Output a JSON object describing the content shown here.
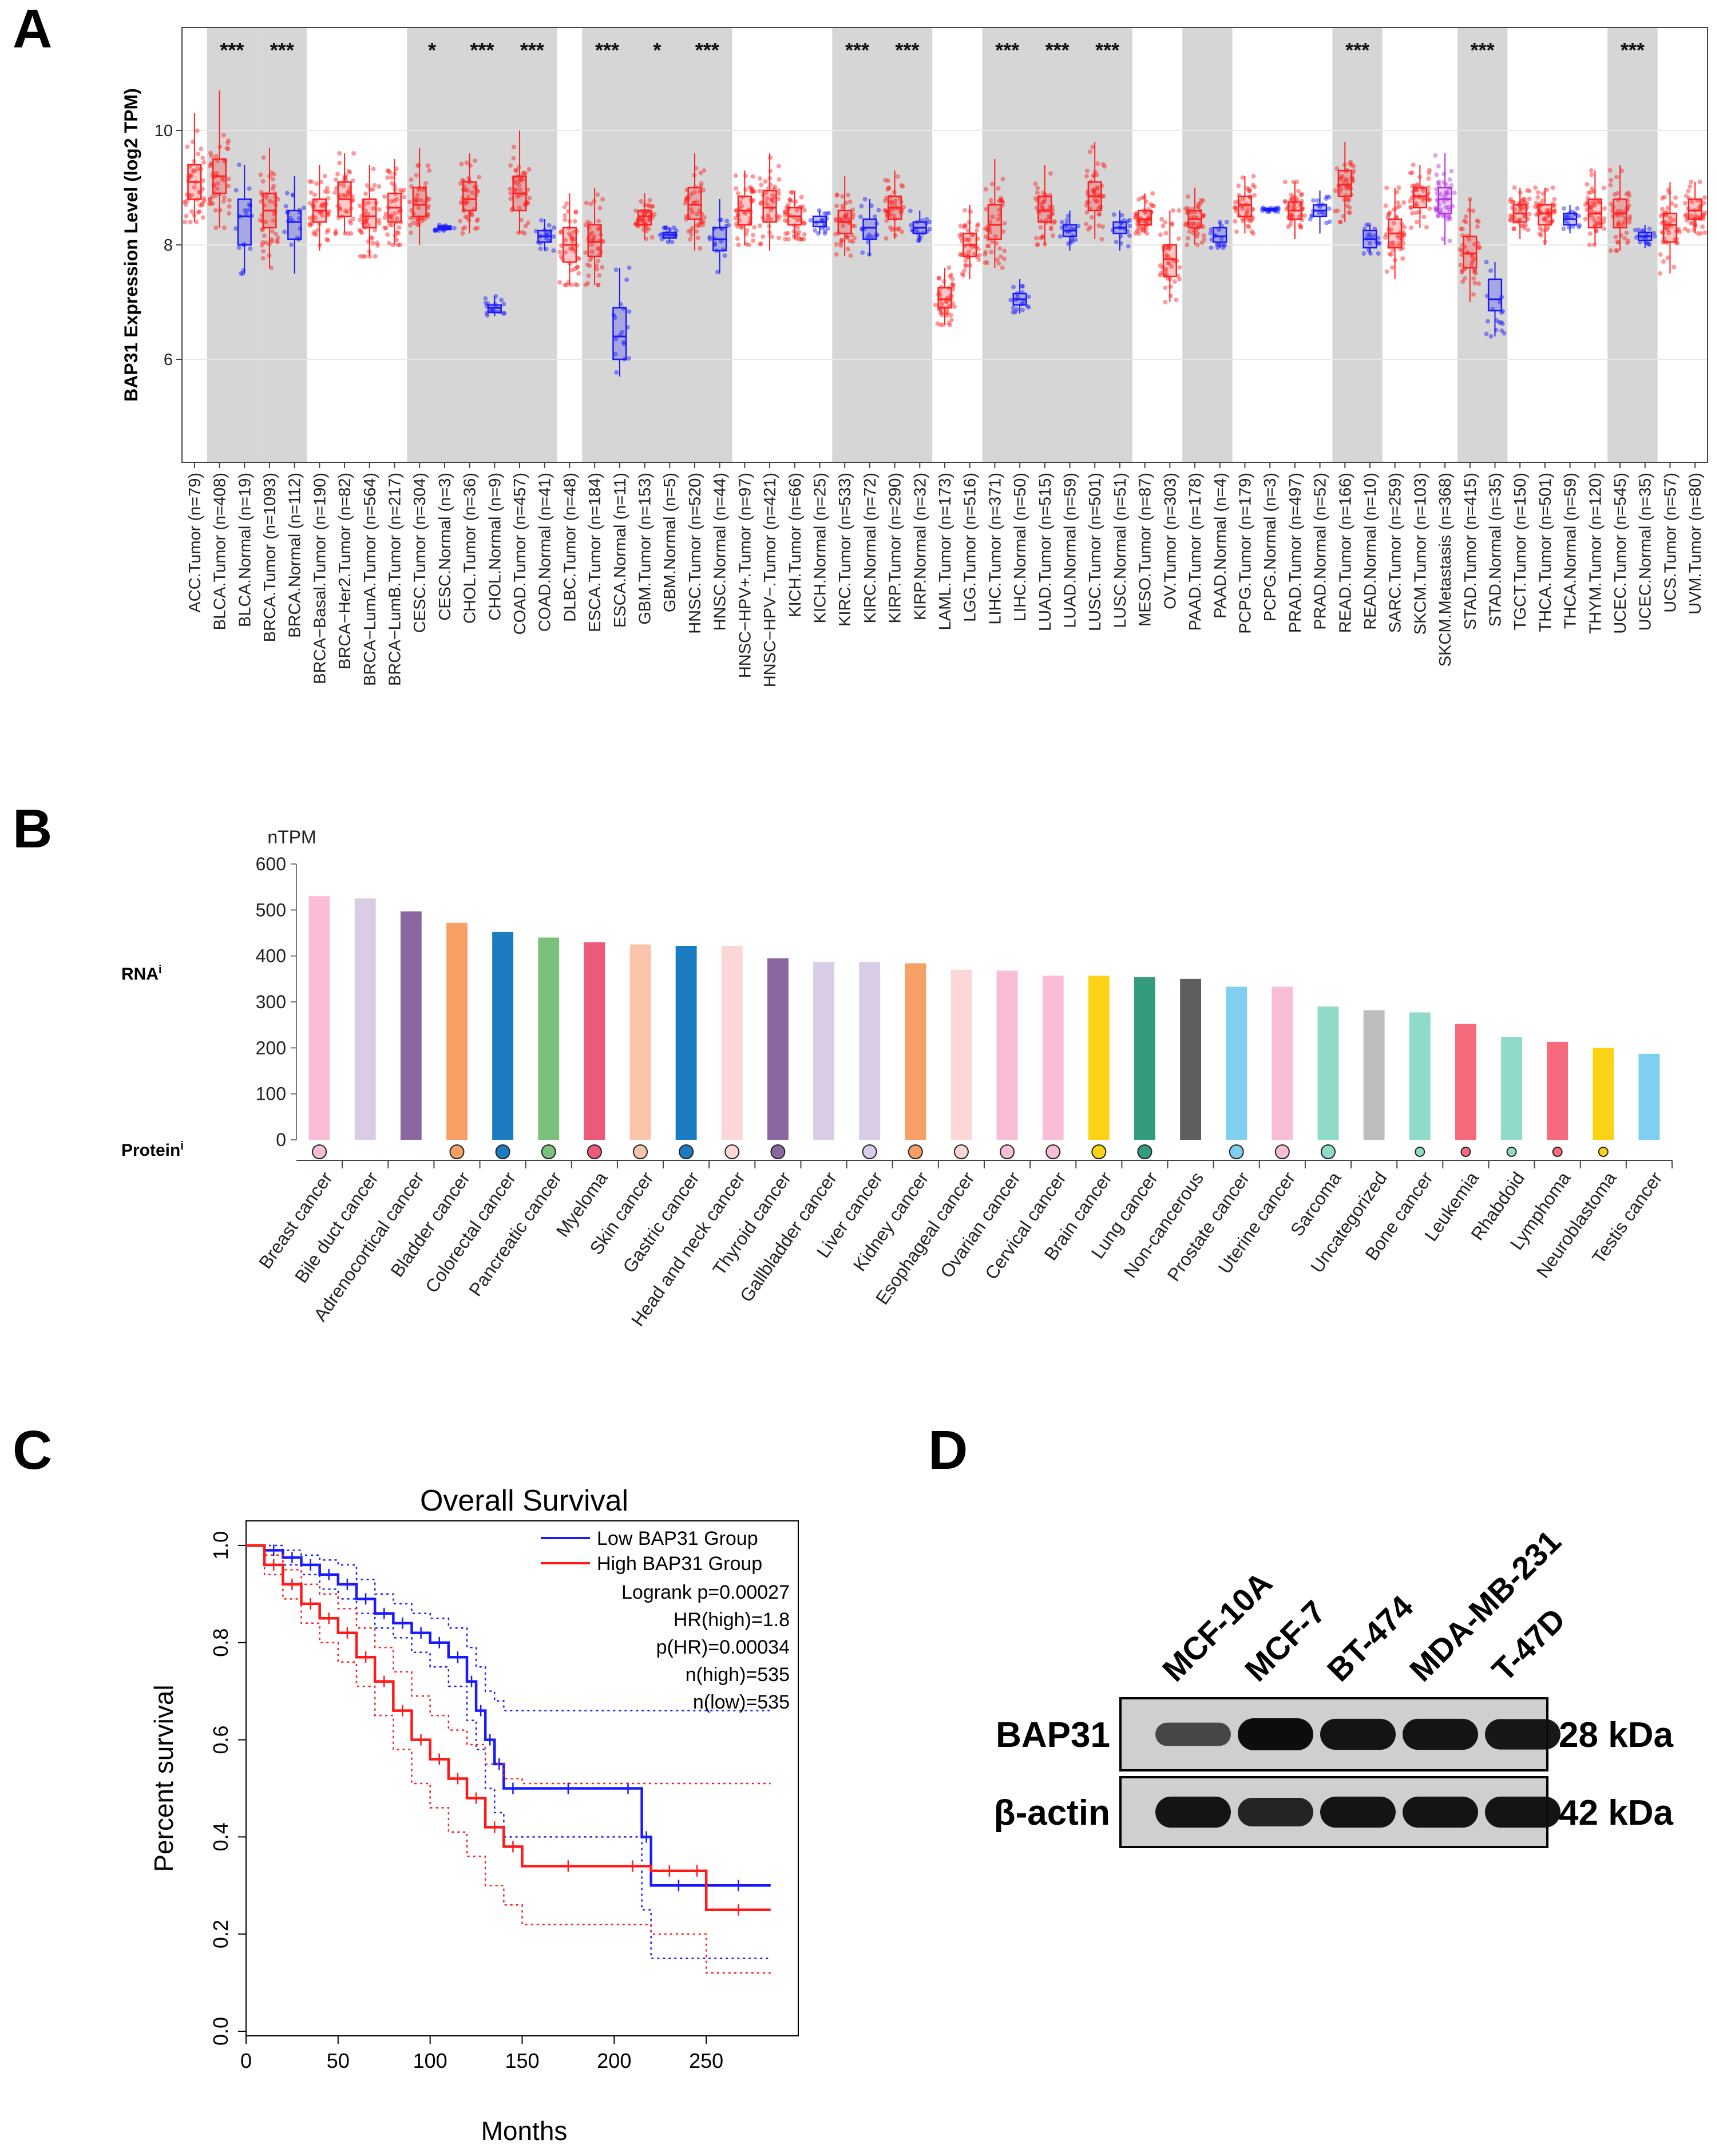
{
  "panels": {
    "a": "A",
    "b": "B",
    "c": "C",
    "d": "D"
  },
  "colors": {
    "tumor": "#ff2020",
    "normal": "#1818ff",
    "metastasis": "#b030e0",
    "shade": "#d6d6d6",
    "low_group": "#1a1aff",
    "high_group": "#ff1a1a"
  },
  "chart_data": [
    {
      "id": "A",
      "type": "box",
      "ylabel": "BAP31 Expression Level (log2 TPM)",
      "yticks": [
        6,
        8,
        10
      ],
      "ylim": [
        4.2,
        11.8
      ],
      "categories": [
        "ACC.Tumor (n=79)",
        "BLCA.Tumor (n=408)",
        "BLCA.Normal (n=19)",
        "BRCA.Tumor (n=1093)",
        "BRCA.Normal (n=112)",
        "BRCA−Basal.Tumor (n=190)",
        "BRCA−Her2.Tumor (n=82)",
        "BRCA−LumA.Tumor (n=564)",
        "BRCA−LumB.Tumor (n=217)",
        "CESC.Tumor (n=304)",
        "CESC.Normal (n=3)",
        "CHOL.Tumor (n=36)",
        "CHOL.Normal (n=9)",
        "COAD.Tumor (n=457)",
        "COAD.Normal (n=41)",
        "DLBC.Tumor (n=48)",
        "ESCA.Tumor (n=184)",
        "ESCA.Normal (n=11)",
        "GBM.Tumor (n=153)",
        "GBM.Normal (n=5)",
        "HNSC.Tumor (n=520)",
        "HNSC.Normal (n=44)",
        "HNSC−HPV+.Tumor (n=97)",
        "HNSC−HPV−.Tumor (n=421)",
        "KICH.Tumor (n=66)",
        "KICH.Normal (n=25)",
        "KIRC.Tumor (n=533)",
        "KIRC.Normal (n=72)",
        "KIRP.Tumor (n=290)",
        "KIRP.Normal (n=32)",
        "LAML.Tumor (n=173)",
        "LGG.Tumor (n=516)",
        "LIHC.Tumor (n=371)",
        "LIHC.Normal (n=50)",
        "LUAD.Tumor (n=515)",
        "LUAD.Normal (n=59)",
        "LUSC.Tumor (n=501)",
        "LUSC.Normal (n=51)",
        "MESO.Tumor (n=87)",
        "OV.Tumor (n=303)",
        "PAAD.Tumor (n=178)",
        "PAAD.Normal (n=4)",
        "PCPG.Tumor (n=179)",
        "PCPG.Normal (n=3)",
        "PRAD.Tumor (n=497)",
        "PRAD.Normal (n=52)",
        "READ.Tumor (n=166)",
        "READ.Normal (n=10)",
        "SARC.Tumor (n=259)",
        "SKCM.Tumor (n=103)",
        "SKCM.Metastasis (n=368)",
        "STAD.Tumor (n=415)",
        "STAD.Normal (n=35)",
        "TGCT.Tumor (n=150)",
        "THCA.Tumor (n=501)",
        "THCA.Normal (n=59)",
        "THYM.Tumor (n=120)",
        "UCEC.Tumor (n=545)",
        "UCEC.Normal (n=35)",
        "UCS.Tumor (n=57)",
        "UVM.Tumor (n=80)"
      ],
      "groups": [
        "T",
        "T",
        "N",
        "T",
        "N",
        "T",
        "T",
        "T",
        "T",
        "T",
        "N",
        "T",
        "N",
        "T",
        "N",
        "T",
        "T",
        "N",
        "T",
        "N",
        "T",
        "N",
        "T",
        "T",
        "T",
        "N",
        "T",
        "N",
        "T",
        "N",
        "T",
        "T",
        "T",
        "N",
        "T",
        "N",
        "T",
        "N",
        "T",
        "T",
        "T",
        "N",
        "T",
        "N",
        "T",
        "N",
        "T",
        "N",
        "T",
        "T",
        "M",
        "T",
        "N",
        "T",
        "T",
        "N",
        "T",
        "T",
        "N",
        "T",
        "T"
      ],
      "boxes": [
        [
          8.4,
          8.8,
          9.1,
          9.4,
          10.3
        ],
        [
          8.3,
          8.9,
          9.2,
          9.5,
          10.7
        ],
        [
          7.5,
          8.0,
          8.5,
          8.8,
          9.4
        ],
        [
          7.6,
          8.3,
          8.6,
          8.9,
          9.7
        ],
        [
          7.5,
          8.1,
          8.4,
          8.6,
          9.2
        ],
        [
          7.9,
          8.4,
          8.6,
          8.8,
          9.4
        ],
        [
          8.2,
          8.5,
          8.8,
          9.1,
          9.6
        ],
        [
          7.8,
          8.3,
          8.5,
          8.8,
          9.4
        ],
        [
          8.0,
          8.4,
          8.65,
          8.9,
          9.5
        ],
        [
          8.0,
          8.5,
          8.7,
          9.0,
          9.7
        ],
        [
          8.25,
          8.27,
          8.3,
          8.33,
          8.35
        ],
        [
          8.2,
          8.6,
          8.8,
          9.1,
          9.6
        ],
        [
          6.75,
          6.82,
          6.9,
          6.95,
          7.1
        ],
        [
          8.2,
          8.6,
          8.9,
          9.2,
          10.0
        ],
        [
          7.9,
          8.05,
          8.15,
          8.25,
          8.45
        ],
        [
          7.3,
          7.7,
          8.0,
          8.3,
          8.9
        ],
        [
          7.3,
          7.8,
          8.05,
          8.35,
          9.0
        ],
        [
          5.7,
          6.0,
          6.4,
          6.9,
          7.6
        ],
        [
          8.1,
          8.35,
          8.5,
          8.6,
          8.9
        ],
        [
          8.05,
          8.12,
          8.18,
          8.22,
          8.3
        ],
        [
          7.9,
          8.45,
          8.7,
          9.0,
          9.6
        ],
        [
          7.5,
          7.9,
          8.1,
          8.3,
          8.8
        ],
        [
          8.0,
          8.35,
          8.6,
          8.85,
          9.3
        ],
        [
          7.9,
          8.4,
          8.65,
          8.95,
          9.6
        ],
        [
          8.1,
          8.35,
          8.5,
          8.65,
          8.95
        ],
        [
          8.2,
          8.32,
          8.4,
          8.5,
          8.6
        ],
        [
          7.8,
          8.2,
          8.4,
          8.6,
          9.2
        ],
        [
          7.8,
          8.1,
          8.3,
          8.45,
          8.8
        ],
        [
          8.1,
          8.45,
          8.65,
          8.85,
          9.3
        ],
        [
          8.05,
          8.2,
          8.3,
          8.4,
          8.6
        ],
        [
          6.6,
          6.9,
          7.05,
          7.25,
          7.6
        ],
        [
          7.4,
          7.8,
          8.0,
          8.2,
          8.7
        ],
        [
          7.6,
          8.1,
          8.35,
          8.7,
          9.5
        ],
        [
          6.8,
          6.95,
          7.05,
          7.15,
          7.4
        ],
        [
          8.0,
          8.4,
          8.6,
          8.85,
          9.4
        ],
        [
          7.9,
          8.15,
          8.25,
          8.35,
          8.6
        ],
        [
          8.1,
          8.6,
          8.85,
          9.1,
          9.8
        ],
        [
          7.9,
          8.2,
          8.3,
          8.4,
          8.6
        ],
        [
          8.2,
          8.35,
          8.45,
          8.6,
          8.9
        ],
        [
          7.0,
          7.45,
          7.75,
          8.0,
          8.6
        ],
        [
          8.0,
          8.3,
          8.45,
          8.6,
          9.0
        ],
        [
          7.95,
          8.05,
          8.15,
          8.3,
          8.4
        ],
        [
          8.2,
          8.5,
          8.7,
          8.85,
          9.2
        ],
        [
          8.58,
          8.6,
          8.62,
          8.64,
          8.65
        ],
        [
          8.1,
          8.45,
          8.6,
          8.75,
          9.1
        ],
        [
          8.2,
          8.5,
          8.6,
          8.7,
          8.95
        ],
        [
          8.4,
          8.85,
          9.05,
          9.3,
          9.8
        ],
        [
          7.85,
          7.95,
          8.1,
          8.25,
          8.35
        ],
        [
          7.4,
          7.95,
          8.2,
          8.45,
          9.0
        ],
        [
          8.3,
          8.65,
          8.85,
          9.0,
          9.4
        ],
        [
          8.0,
          8.55,
          8.8,
          9.0,
          9.6
        ],
        [
          7.0,
          7.6,
          7.85,
          8.15,
          8.8
        ],
        [
          6.4,
          6.85,
          7.05,
          7.4,
          7.7
        ],
        [
          8.1,
          8.4,
          8.55,
          8.7,
          9.0
        ],
        [
          8.0,
          8.35,
          8.55,
          8.7,
          9.0
        ],
        [
          8.2,
          8.35,
          8.45,
          8.55,
          8.7
        ],
        [
          8.0,
          8.3,
          8.55,
          8.8,
          9.3
        ],
        [
          7.9,
          8.3,
          8.55,
          8.8,
          9.4
        ],
        [
          7.95,
          8.08,
          8.15,
          8.22,
          8.35
        ],
        [
          7.5,
          8.05,
          8.35,
          8.55,
          9.1
        ],
        [
          8.2,
          8.45,
          8.6,
          8.8,
          9.1
        ]
      ],
      "shaded_pairs": [
        [
          1,
          2
        ],
        [
          3,
          4
        ],
        [
          9,
          10
        ],
        [
          11,
          12
        ],
        [
          13,
          14
        ],
        [
          16,
          17
        ],
        [
          18,
          19
        ],
        [
          20,
          21
        ],
        [
          26,
          27
        ],
        [
          28,
          29
        ],
        [
          32,
          33
        ],
        [
          34,
          35
        ],
        [
          36,
          37
        ],
        [
          40,
          41
        ],
        [
          46,
          47
        ],
        [
          51,
          52
        ],
        [
          57,
          58
        ]
      ],
      "significance": [
        {
          "at": [
            1,
            2
          ],
          "label": "***"
        },
        {
          "at": [
            3,
            4
          ],
          "label": "***"
        },
        {
          "at": [
            9,
            10
          ],
          "label": "*"
        },
        {
          "at": [
            11,
            12
          ],
          "label": "***"
        },
        {
          "at": [
            13,
            14
          ],
          "label": "***"
        },
        {
          "at": [
            16,
            17
          ],
          "label": "***"
        },
        {
          "at": [
            18,
            19
          ],
          "label": "*"
        },
        {
          "at": [
            20,
            21
          ],
          "label": "***"
        },
        {
          "at": [
            26,
            27
          ],
          "label": "***"
        },
        {
          "at": [
            28,
            29
          ],
          "label": "***"
        },
        {
          "at": [
            32,
            33
          ],
          "label": "***"
        },
        {
          "at": [
            34,
            35
          ],
          "label": "***"
        },
        {
          "at": [
            36,
            37
          ],
          "label": "***"
        },
        {
          "at": [
            46,
            47
          ],
          "label": "***"
        },
        {
          "at": [
            51,
            52
          ],
          "label": "***"
        },
        {
          "at": [
            57,
            58
          ],
          "label": "***"
        }
      ]
    },
    {
      "id": "B",
      "type": "bar",
      "unit_label": "nTPM",
      "rna_label": "RNA",
      "protein_label": "Protein",
      "info_mark": "i",
      "yticks": [
        0,
        100,
        200,
        300,
        400,
        500,
        600
      ],
      "ylim": [
        0,
        600
      ],
      "categories": [
        "Breast cancer",
        "Bile duct cancer",
        "Adrenocortical cancer",
        "Bladder cancer",
        "Colorectal cancer",
        "Pancreatic cancer",
        "Myeloma",
        "Skin cancer",
        "Gastric cancer",
        "Head and neck cancer",
        "Thyroid cancer",
        "Gallbladder cancer",
        "Liver cancer",
        "Kidney cancer",
        "Esophageal cancer",
        "Ovarian cancer",
        "Cervical cancer",
        "Brain cancer",
        "Lung cancer",
        "Non-cancerous",
        "Prostate cancer",
        "Uterine cancer",
        "Sarcoma",
        "Uncategorized",
        "Bone cancer",
        "Leukemia",
        "Rhabdoid",
        "Lymphoma",
        "Neuroblastoma",
        "Testis cancer"
      ],
      "values": [
        530,
        525,
        497,
        472,
        452,
        440,
        430,
        425,
        422,
        422,
        395,
        387,
        387,
        384,
        370,
        368,
        357,
        357,
        354,
        350,
        333,
        333,
        290,
        282,
        277,
        252,
        224,
        213,
        200,
        187
      ],
      "colors": [
        "#f9bdd7",
        "#d9cde6",
        "#8a67a0",
        "#f7a066",
        "#1a7bc0",
        "#7cc07e",
        "#ec5a79",
        "#f9c4aa",
        "#1a7bc0",
        "#fbd7d7",
        "#8a67a0",
        "#d9cde6",
        "#d9cde6",
        "#f7a066",
        "#fbd7d7",
        "#f9bdd7",
        "#f9bdd7",
        "#fbd316",
        "#329c7c",
        "#5e5e5e",
        "#7ecff0",
        "#f9bdd7",
        "#8ddbc8",
        "#bdbdbd",
        "#8ddbc8",
        "#f76a7e",
        "#8ddbc8",
        "#f76a7e",
        "#fbd316",
        "#7ecff0"
      ],
      "protein_marker_size": [
        "large",
        "none",
        "none",
        "large",
        "large",
        "large",
        "large",
        "large",
        "large",
        "large",
        "large",
        "none",
        "large",
        "large",
        "large",
        "large",
        "large",
        "large",
        "large",
        "none",
        "large",
        "large",
        "large",
        "none",
        "small",
        "small",
        "small",
        "small",
        "small",
        "none"
      ]
    },
    {
      "id": "C",
      "type": "line",
      "title": "Overall Survival",
      "xlabel": "Months",
      "ylabel": "Percent survival",
      "xlim": [
        0,
        300
      ],
      "ylim": [
        0,
        1
      ],
      "xticks": [
        0,
        50,
        100,
        150,
        200,
        250
      ],
      "yticks": [
        "0.0",
        "0.2",
        "0.4",
        "0.6",
        "0.8",
        "1.0"
      ],
      "legend": {
        "placement": "top-right",
        "entries": [
          "Low BAP31 Group",
          "High BAP31 Group"
        ]
      },
      "stats": [
        "Logrank p=0.00027",
        "HR(high)=1.8",
        "p(HR)=0.00034",
        "n(high)=535",
        "n(low)=535"
      ],
      "series": [
        {
          "name": "Low BAP31 Group",
          "x": [
            0,
            10,
            20,
            30,
            40,
            50,
            60,
            70,
            80,
            90,
            100,
            110,
            120,
            125,
            130,
            135,
            140,
            150,
            200,
            215,
            220,
            250,
            285
          ],
          "y": [
            1.0,
            0.99,
            0.975,
            0.96,
            0.94,
            0.92,
            0.89,
            0.86,
            0.84,
            0.82,
            0.8,
            0.77,
            0.72,
            0.66,
            0.6,
            0.55,
            0.5,
            0.5,
            0.5,
            0.4,
            0.3,
            0.3,
            0.3
          ],
          "ci_low": [
            1.0,
            0.98,
            0.96,
            0.94,
            0.91,
            0.89,
            0.86,
            0.83,
            0.81,
            0.78,
            0.75,
            0.71,
            0.64,
            0.58,
            0.5,
            0.45,
            0.4,
            0.4,
            0.4,
            0.25,
            0.15,
            0.15,
            0.15
          ],
          "ci_high": [
            1.0,
            1.0,
            0.99,
            0.98,
            0.97,
            0.96,
            0.93,
            0.9,
            0.88,
            0.86,
            0.85,
            0.83,
            0.79,
            0.75,
            0.7,
            0.68,
            0.66,
            0.66,
            0.66,
            0.66,
            0.66,
            0.66,
            0.66
          ]
        },
        {
          "name": "High BAP31 Group",
          "x": [
            0,
            10,
            20,
            30,
            40,
            50,
            60,
            70,
            80,
            90,
            100,
            110,
            120,
            130,
            140,
            150,
            200,
            220,
            240,
            250,
            285
          ],
          "y": [
            1.0,
            0.96,
            0.92,
            0.88,
            0.85,
            0.82,
            0.77,
            0.72,
            0.66,
            0.6,
            0.56,
            0.52,
            0.48,
            0.42,
            0.38,
            0.34,
            0.34,
            0.33,
            0.33,
            0.25,
            0.25
          ],
          "ci_low": [
            1.0,
            0.94,
            0.89,
            0.84,
            0.8,
            0.76,
            0.71,
            0.65,
            0.58,
            0.51,
            0.46,
            0.41,
            0.36,
            0.3,
            0.26,
            0.22,
            0.22,
            0.2,
            0.2,
            0.12,
            0.12
          ],
          "ci_high": [
            1.0,
            0.98,
            0.95,
            0.92,
            0.9,
            0.87,
            0.83,
            0.79,
            0.74,
            0.69,
            0.65,
            0.62,
            0.59,
            0.55,
            0.52,
            0.51,
            0.51,
            0.51,
            0.51,
            0.51,
            0.51
          ]
        }
      ]
    }
  ],
  "western_blot": {
    "lanes": [
      "MCF-10A",
      "MCF-7",
      "BT-474",
      "MDA-MB-231",
      "T-47D"
    ],
    "rows": [
      {
        "protein": "BAP31",
        "size": "28 kDa",
        "intensity": [
          0.55,
          1.0,
          0.95,
          0.95,
          0.92
        ]
      },
      {
        "protein": "β-actin",
        "size": "42 kDa",
        "intensity": [
          0.95,
          0.82,
          0.95,
          0.95,
          0.95
        ]
      }
    ]
  }
}
